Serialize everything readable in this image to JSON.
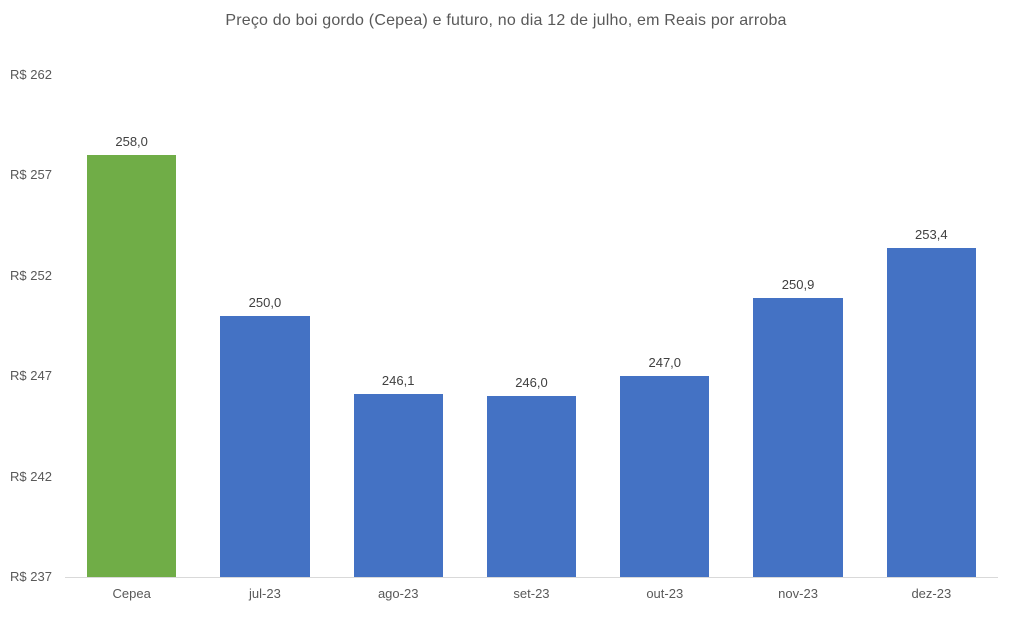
{
  "chart_data": {
    "type": "bar",
    "title": "Preço do boi gordo (Cepea) e futuro, no dia 12 de julho, em Reais por arroba",
    "categories": [
      "Cepea",
      "jul-23",
      "ago-23",
      "set-23",
      "out-23",
      "nov-23",
      "dez-23"
    ],
    "values": [
      258.0,
      250.0,
      246.1,
      246.0,
      247.0,
      250.9,
      253.4
    ],
    "value_labels": [
      "258,0",
      "250,0",
      "246,1",
      "246,0",
      "247,0",
      "250,9",
      "253,4"
    ],
    "bar_colors": [
      "#70AD47",
      "#4472C4",
      "#4472C4",
      "#4472C4",
      "#4472C4",
      "#4472C4",
      "#4472C4"
    ],
    "ylim": [
      237,
      262
    ],
    "yticks": [
      262,
      257,
      252,
      247,
      242,
      237
    ],
    "ytick_labels": [
      "R$ 262",
      "R$ 257",
      "R$ 252",
      "R$ 247",
      "R$ 242",
      "R$ 237"
    ],
    "xlabel": "",
    "ylabel": "",
    "grid": false,
    "legend": "none",
    "colors": {
      "cepea_green": "#70AD47",
      "future_blue": "#4472C4",
      "axis_line": "#D9D9D9",
      "title_text": "#595959",
      "tick_text": "#595959",
      "value_label_text": "#404040",
      "background": "#FFFFFF"
    }
  }
}
